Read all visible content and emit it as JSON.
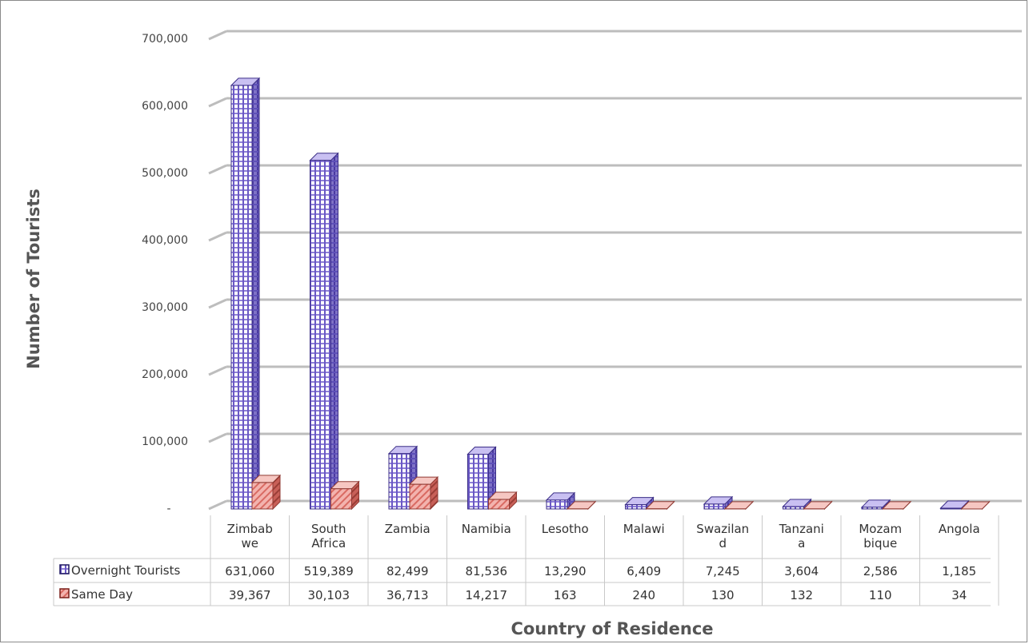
{
  "chart_data": {
    "type": "bar",
    "title": "",
    "xlabel": "Country of Residence",
    "ylabel": "Number of Tourists",
    "ylim": [
      0,
      700000
    ],
    "yticks": [
      {
        "value": 0,
        "label": "-"
      },
      {
        "value": 100000,
        "label": "100,000"
      },
      {
        "value": 200000,
        "label": "200,000"
      },
      {
        "value": 300000,
        "label": "300,000"
      },
      {
        "value": 400000,
        "label": "400,000"
      },
      {
        "value": 500000,
        "label": "500,000"
      },
      {
        "value": 600000,
        "label": "600,000"
      },
      {
        "value": 700000,
        "label": "700,000"
      }
    ],
    "categories": [
      [
        "Zimbab",
        "we"
      ],
      [
        "South",
        "Africa"
      ],
      [
        "Zambia"
      ],
      [
        "Namibia"
      ],
      [
        "Lesotho"
      ],
      [
        "Malawi"
      ],
      [
        "Swazilan",
        "d"
      ],
      [
        "Tanzani",
        "a"
      ],
      [
        "Mozam",
        "bique"
      ],
      [
        "Angola"
      ]
    ],
    "series": [
      {
        "name": "Overnight Tourists",
        "color": "#9b8ce0",
        "values": [
          631060,
          519389,
          82499,
          81536,
          13290,
          6409,
          7245,
          3604,
          2586,
          1185
        ],
        "labels": [
          "631,060",
          "519,389",
          "82,499",
          "81,536",
          "13,290",
          "6,409",
          "7,245",
          "3,604",
          "2,586",
          "1,185"
        ]
      },
      {
        "name": "Same Day",
        "color": "#e58a84",
        "values": [
          39367,
          30103,
          36713,
          14217,
          163,
          240,
          130,
          132,
          110,
          34
        ],
        "labels": [
          "39,367",
          "30,103",
          "36,713",
          "14,217",
          "163",
          "240",
          "130",
          "132",
          "110",
          "34"
        ]
      }
    ],
    "legend": "data-table",
    "grid": true
  }
}
